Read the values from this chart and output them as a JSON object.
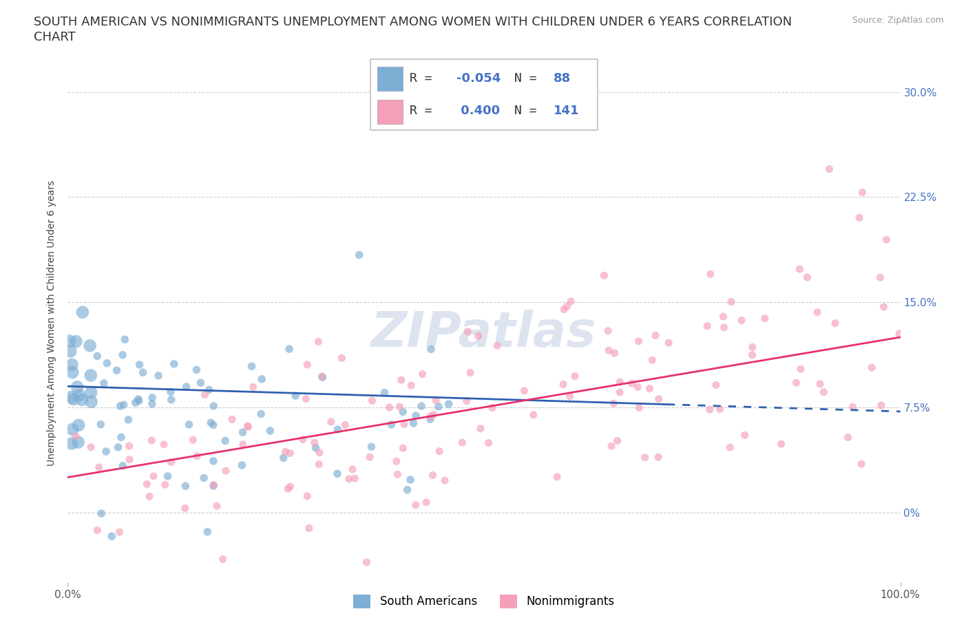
{
  "title_line1": "SOUTH AMERICAN VS NONIMMIGRANTS UNEMPLOYMENT AMONG WOMEN WITH CHILDREN UNDER 6 YEARS CORRELATION",
  "title_line2": "CHART",
  "source": "Source: ZipAtlas.com",
  "ylabel": "Unemployment Among Women with Children Under 6 years",
  "xlim": [
    0,
    100
  ],
  "ylim": [
    -5,
    32
  ],
  "yticks": [
    0.0,
    7.5,
    15.0,
    22.5,
    30.0
  ],
  "ytick_labels": [
    "0%",
    "7.5%",
    "15.0%",
    "22.5%",
    "30.0%"
  ],
  "xticks": [
    0,
    100
  ],
  "xtick_labels": [
    "0.0%",
    "100.0%"
  ],
  "group1_color": "#7daed4",
  "group2_color": "#f4a0b8",
  "group1_line_color": "#3060b0",
  "group2_line_color": "#e8306a",
  "group1_label": "South Americans",
  "group2_label": "Nonimmigrants",
  "group1_R": -0.054,
  "group1_N": 88,
  "group2_R": 0.4,
  "group2_N": 141,
  "watermark": "ZIPatlas",
  "background_color": "#ffffff",
  "grid_color": "#cccccc",
  "title_fontsize": 13,
  "axis_label_fontsize": 10,
  "tick_fontsize": 11,
  "watermark_color": "#dde4ef",
  "watermark_fontsize": 52,
  "right_ytick_color": "#4472c4",
  "blue_trend_y0": 9.0,
  "blue_trend_y100": 7.2,
  "pink_trend_y0": 2.5,
  "pink_trend_y100": 12.5
}
